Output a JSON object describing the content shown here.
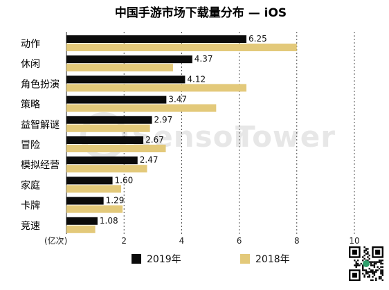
{
  "colors": {
    "y2019": "#0b0b0b",
    "y2018": "#e3c97a",
    "grid": "#222222",
    "watermark": "#e7e7e7"
  },
  "watermark": {
    "brand_a": "Sensor",
    "brand_b": "Tower"
  },
  "qr_icon": "qr-code-icon",
  "chart_data": {
    "type": "bar",
    "orientation": "horizontal",
    "title": "中国手游市场下载量分布 — iOS",
    "xlabel": "(亿次)",
    "xlim": [
      0,
      10
    ],
    "xticks": [
      "2",
      "4",
      "6",
      "8",
      "10"
    ],
    "grid": "vertical dashed",
    "legend_position": "bottom",
    "categories": [
      "动作",
      "休闲",
      "角色扮演",
      "策略",
      "益智解谜",
      "冒险",
      "模拟经营",
      "家庭",
      "卡牌",
      "竞速"
    ],
    "series": [
      {
        "name": "2019年",
        "values": [
          6.25,
          4.37,
          4.12,
          3.47,
          2.97,
          2.67,
          2.47,
          1.6,
          1.29,
          1.08
        ],
        "labels": [
          "6.25",
          "4.37",
          "4.12",
          "3.47",
          "2.97",
          "2.67",
          "2.47",
          "1.60",
          "1.29",
          "1.08"
        ]
      },
      {
        "name": "2018年",
        "values": [
          8.0,
          3.7,
          6.25,
          5.2,
          2.9,
          3.45,
          2.8,
          1.9,
          1.95,
          1.0
        ]
      }
    ]
  }
}
